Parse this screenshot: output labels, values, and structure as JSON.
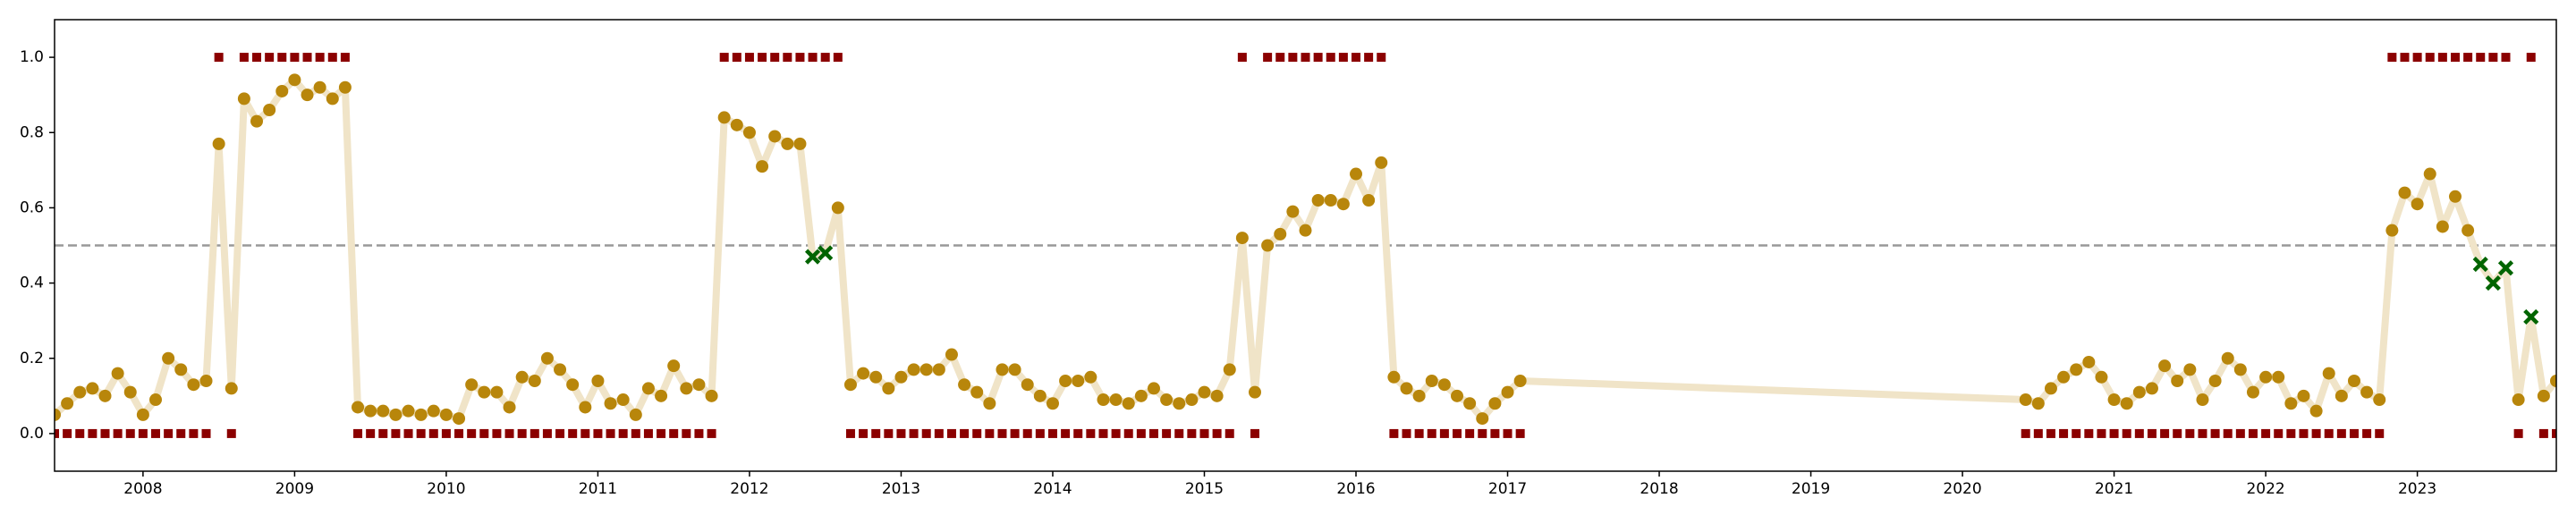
{
  "chart_data": {
    "type": "line",
    "x": [
      "2007-06",
      "2007-07",
      "2007-08",
      "2007-09",
      "2007-10",
      "2007-11",
      "2007-12",
      "2008-01",
      "2008-02",
      "2008-03",
      "2008-04",
      "2008-05",
      "2008-06",
      "2008-07",
      "2008-08",
      "2008-09",
      "2008-10",
      "2008-11",
      "2008-12",
      "2009-01",
      "2009-02",
      "2009-03",
      "2009-04",
      "2009-05",
      "2009-06",
      "2009-07",
      "2009-08",
      "2009-09",
      "2009-10",
      "2009-11",
      "2009-12",
      "2010-01",
      "2010-02",
      "2010-03",
      "2010-04",
      "2010-05",
      "2010-06",
      "2010-07",
      "2010-08",
      "2010-09",
      "2010-10",
      "2010-11",
      "2010-12",
      "2011-01",
      "2011-02",
      "2011-03",
      "2011-04",
      "2011-05",
      "2011-06",
      "2011-07",
      "2011-08",
      "2011-09",
      "2011-10",
      "2011-11",
      "2011-12",
      "2012-01",
      "2012-02",
      "2012-03",
      "2012-04",
      "2012-05",
      "2012-06",
      "2012-07",
      "2012-08",
      "2012-09",
      "2012-10",
      "2012-11",
      "2012-12",
      "2013-01",
      "2013-02",
      "2013-03",
      "2013-04",
      "2013-05",
      "2013-06",
      "2013-07",
      "2013-08",
      "2013-09",
      "2013-10",
      "2013-11",
      "2013-12",
      "2014-01",
      "2014-02",
      "2014-03",
      "2014-04",
      "2014-05",
      "2014-06",
      "2014-07",
      "2014-08",
      "2014-09",
      "2014-10",
      "2014-11",
      "2014-12",
      "2015-01",
      "2015-02",
      "2015-03",
      "2015-04",
      "2015-05",
      "2015-06",
      "2015-07",
      "2015-08",
      "2015-09",
      "2015-10",
      "2015-11",
      "2015-12",
      "2016-01",
      "2016-02",
      "2016-03",
      "2016-04",
      "2016-05",
      "2016-06",
      "2016-07",
      "2016-08",
      "2016-09",
      "2016-10",
      "2016-11",
      "2016-12",
      "2017-01",
      "2017-02",
      "2020-06",
      "2020-07",
      "2020-08",
      "2020-09",
      "2020-10",
      "2020-11",
      "2020-12",
      "2021-01",
      "2021-02",
      "2021-03",
      "2021-04",
      "2021-05",
      "2021-06",
      "2021-07",
      "2021-08",
      "2021-09",
      "2021-10",
      "2021-11",
      "2021-12",
      "2022-01",
      "2022-02",
      "2022-03",
      "2022-04",
      "2022-05",
      "2022-06",
      "2022-07",
      "2022-08",
      "2022-09",
      "2022-10",
      "2022-11",
      "2022-12",
      "2023-01",
      "2023-02",
      "2023-03",
      "2023-04",
      "2023-05",
      "2023-06",
      "2023-07",
      "2023-08",
      "2023-09",
      "2023-10",
      "2023-11",
      "2023-12"
    ],
    "series": [
      {
        "color": "#b8860b",
        "line_color": "#f0e4c8",
        "miss_color": "#006400",
        "values": [
          0.05,
          0.08,
          0.11,
          0.12,
          0.1,
          0.16,
          0.11,
          0.05,
          0.09,
          0.2,
          0.17,
          0.13,
          0.14,
          0.77,
          0.12,
          0.89,
          0.83,
          0.86,
          0.91,
          0.94,
          0.9,
          0.92,
          0.89,
          0.92,
          0.07,
          0.06,
          0.06,
          0.05,
          0.06,
          0.05,
          0.06,
          0.05,
          0.04,
          0.13,
          0.11,
          0.11,
          0.07,
          0.15,
          0.14,
          0.2,
          0.17,
          0.13,
          0.07,
          0.14,
          0.08,
          0.09,
          0.05,
          0.12,
          0.1,
          0.18,
          0.12,
          0.13,
          0.1,
          0.84,
          0.82,
          0.8,
          0.71,
          0.79,
          0.77,
          0.77,
          0.47,
          0.48,
          0.6,
          0.13,
          0.16,
          0.15,
          0.12,
          0.15,
          0.17,
          0.17,
          0.17,
          0.21,
          0.13,
          0.11,
          0.08,
          0.17,
          0.17,
          0.13,
          0.1,
          0.08,
          0.14,
          0.14,
          0.15,
          0.09,
          0.09,
          0.08,
          0.1,
          0.12,
          0.09,
          0.08,
          0.09,
          0.11,
          0.1,
          0.17,
          0.52,
          0.11,
          0.5,
          0.53,
          0.59,
          0.54,
          0.62,
          0.62,
          0.61,
          0.69,
          0.62,
          0.72,
          0.15,
          0.12,
          0.1,
          0.14,
          0.13,
          0.1,
          0.08,
          0.04,
          0.08,
          0.11,
          0.14,
          0.09,
          0.08,
          0.12,
          0.15,
          0.17,
          0.19,
          0.15,
          0.09,
          0.08,
          0.11,
          0.12,
          0.18,
          0.14,
          0.17,
          0.09,
          0.14,
          0.2,
          0.17,
          0.11,
          0.15,
          0.15,
          0.08,
          0.1,
          0.06,
          0.16,
          0.1,
          0.14,
          0.11,
          0.09,
          0.54,
          0.64,
          0.61,
          0.69,
          0.55,
          0.63,
          0.54,
          0.45,
          0.4,
          0.44,
          0.09,
          0.31,
          0.1,
          0.14
        ]
      },
      {
        "color": "#8b0000",
        "values": [
          0,
          0,
          0,
          0,
          0,
          0,
          0,
          0,
          0,
          0,
          0,
          0,
          0,
          1,
          0,
          1,
          1,
          1,
          1,
          1,
          1,
          1,
          1,
          1,
          0,
          0,
          0,
          0,
          0,
          0,
          0,
          0,
          0,
          0,
          0,
          0,
          0,
          0,
          0,
          0,
          0,
          0,
          0,
          0,
          0,
          0,
          0,
          0,
          0,
          0,
          0,
          0,
          0,
          1,
          1,
          1,
          1,
          1,
          1,
          1,
          1,
          1,
          1,
          0,
          0,
          0,
          0,
          0,
          0,
          0,
          0,
          0,
          0,
          0,
          0,
          0,
          0,
          0,
          0,
          0,
          0,
          0,
          0,
          0,
          0,
          0,
          0,
          0,
          0,
          0,
          0,
          0,
          0,
          0,
          1,
          0,
          1,
          1,
          1,
          1,
          1,
          1,
          1,
          1,
          1,
          1,
          0,
          0,
          0,
          0,
          0,
          0,
          0,
          0,
          0,
          0,
          0,
          0,
          0,
          0,
          0,
          0,
          0,
          0,
          0,
          0,
          0,
          0,
          0,
          0,
          0,
          0,
          0,
          0,
          0,
          0,
          0,
          0,
          0,
          0,
          0,
          0,
          0,
          0,
          0,
          0,
          1,
          1,
          1,
          1,
          1,
          1,
          1,
          1,
          1,
          1,
          0,
          1,
          0,
          0
        ]
      }
    ],
    "hline": 0.5,
    "hline_color": "#999999",
    "xlim": [
      "2007-06",
      "2023-12"
    ],
    "xticks": [
      "2008",
      "2009",
      "2010",
      "2011",
      "2012",
      "2013",
      "2014",
      "2015",
      "2016",
      "2017",
      "2018",
      "2019",
      "2020",
      "2021",
      "2022",
      "2023"
    ],
    "ylim": [
      -0.1,
      1.1
    ],
    "yticks": [
      {
        "value": 0,
        "label": "0.0"
      },
      {
        "value": 0.2,
        "label": "0.2"
      },
      {
        "value": 0.4,
        "label": "0.4"
      },
      {
        "value": 0.6,
        "label": "0.6"
      },
      {
        "value": 0.8,
        "label": "0.8"
      },
      {
        "value": 1,
        "label": "1.0"
      }
    ]
  }
}
